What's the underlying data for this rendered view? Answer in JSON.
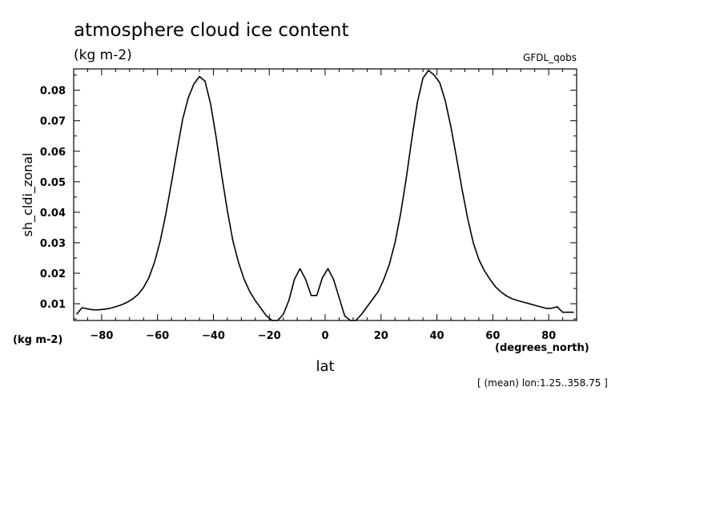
{
  "chart_data": {
    "type": "line",
    "title": "atmosphere cloud ice content",
    "subtitle": "(kg m-2)",
    "model_label": "GFDL_qobs",
    "xlabel": "lat",
    "x_units": "(degrees_north)",
    "ylabel": "sh_cldi_zonal",
    "y_units": "(kg m-2)",
    "footnote": "[ (mean) lon:1.25..358.75 ]",
    "xlim": [
      -90,
      90
    ],
    "ylim": [
      0.0045,
      0.087
    ],
    "x_ticks": [
      -80,
      -60,
      -40,
      -20,
      0,
      20,
      40,
      60,
      80
    ],
    "y_ticks": [
      0.01,
      0.02,
      0.03,
      0.04,
      0.05,
      0.06,
      0.07,
      0.08
    ],
    "grid": false,
    "x": [
      -89,
      -87,
      -85,
      -83,
      -81,
      -79,
      -77,
      -75,
      -73,
      -71,
      -69,
      -67,
      -65,
      -63,
      -61,
      -59,
      -57,
      -55,
      -53,
      -51,
      -49,
      -47,
      -45,
      -43,
      -41,
      -39,
      -37,
      -35,
      -33,
      -31,
      -29,
      -27,
      -25,
      -23,
      -21,
      -19,
      -17,
      -15,
      -13,
      -11,
      -9,
      -7,
      -5,
      -3,
      -1,
      1,
      3,
      5,
      7,
      9,
      11,
      13,
      15,
      17,
      19,
      21,
      23,
      25,
      27,
      29,
      31,
      33,
      35,
      37,
      39,
      41,
      43,
      45,
      47,
      49,
      51,
      53,
      55,
      57,
      59,
      61,
      63,
      65,
      67,
      69,
      71,
      73,
      75,
      77,
      79,
      81,
      83,
      85,
      87,
      89
    ],
    "y": [
      0.0065,
      0.0087,
      0.0083,
      0.008,
      0.008,
      0.0082,
      0.0085,
      0.009,
      0.0096,
      0.0104,
      0.0115,
      0.013,
      0.0153,
      0.0187,
      0.0238,
      0.0307,
      0.0395,
      0.0497,
      0.0603,
      0.0705,
      0.0775,
      0.082,
      0.0845,
      0.083,
      0.0755,
      0.0645,
      0.052,
      0.0405,
      0.0305,
      0.0235,
      0.018,
      0.014,
      0.011,
      0.0085,
      0.006,
      0.0045,
      0.0045,
      0.0065,
      0.011,
      0.018,
      0.0215,
      0.018,
      0.0127,
      0.0127,
      0.0185,
      0.0215,
      0.018,
      0.012,
      0.006,
      0.0045,
      0.0045,
      0.0065,
      0.009,
      0.0115,
      0.014,
      0.018,
      0.023,
      0.03,
      0.0395,
      0.051,
      0.064,
      0.076,
      0.084,
      0.0865,
      0.085,
      0.0825,
      0.0765,
      0.068,
      0.058,
      0.0475,
      0.038,
      0.03,
      0.0245,
      0.0208,
      0.018,
      0.0155,
      0.0138,
      0.0125,
      0.0116,
      0.011,
      0.0105,
      0.01,
      0.0095,
      0.009,
      0.0085,
      0.0085,
      0.009,
      0.0072,
      0.0072,
      0.0072
    ]
  }
}
